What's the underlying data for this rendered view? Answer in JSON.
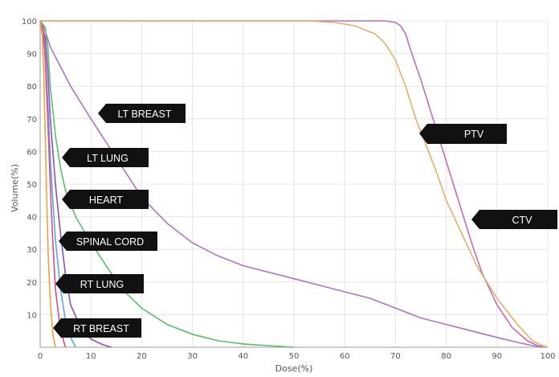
{
  "chart_data": {
    "type": "line",
    "xlabel": "Dose(%)",
    "ylabel": "Volume(%)",
    "xlim": [
      0,
      100
    ],
    "ylim": [
      0,
      100
    ],
    "xticks": [
      0,
      10,
      20,
      30,
      40,
      50,
      60,
      70,
      80,
      90,
      100
    ],
    "yticks": [
      10,
      20,
      30,
      40,
      50,
      60,
      70,
      80,
      90,
      100
    ],
    "grid": true,
    "series": [
      {
        "name": "LT BREAST",
        "color": "#b070c8",
        "x": [
          0,
          1,
          2,
          4,
          6,
          10,
          15,
          20,
          25,
          30,
          35,
          40,
          45,
          50,
          55,
          60,
          65,
          70,
          75,
          80,
          85,
          90,
          94,
          97,
          100
        ],
        "y": [
          100,
          97,
          92,
          86,
          80,
          70,
          58,
          46,
          38,
          32,
          28,
          25,
          23,
          21,
          19,
          17,
          15,
          12,
          9,
          7,
          5,
          3,
          1.5,
          0.5,
          0
        ]
      },
      {
        "name": "PTV",
        "color": "#c76ab8",
        "x": [
          0,
          10,
          20,
          30,
          40,
          50,
          60,
          65,
          68,
          70,
          71,
          72,
          73,
          75,
          77,
          80,
          83,
          85,
          87,
          90,
          93,
          96,
          98,
          100
        ],
        "y": [
          100,
          100,
          100,
          100,
          100,
          100,
          100,
          100,
          100,
          99.5,
          98.5,
          96,
          91,
          82,
          72,
          57,
          42,
          32,
          23,
          13,
          6,
          2,
          0.5,
          0
        ]
      },
      {
        "name": "CTV",
        "color": "#e0b16a",
        "x": [
          0,
          10,
          20,
          30,
          40,
          50,
          53,
          55,
          58,
          62,
          66,
          68,
          70,
          72,
          74,
          76,
          78,
          80,
          83,
          86,
          90,
          94,
          97,
          99,
          100
        ],
        "y": [
          100,
          100,
          100,
          100,
          100,
          100,
          100,
          99.8,
          99.5,
          98.5,
          96,
          93,
          88,
          80,
          70,
          62,
          54,
          45,
          35,
          25,
          15,
          7,
          2,
          0.5,
          0
        ]
      },
      {
        "name": "LT LUNG",
        "color": "#58c06a",
        "x": [
          0,
          1,
          1.5,
          2,
          3,
          4,
          5,
          7,
          10,
          13,
          16,
          20,
          25,
          30,
          35,
          40,
          45,
          50
        ],
        "y": [
          100,
          98,
          92,
          80,
          65,
          55,
          48,
          40,
          32,
          25,
          18,
          12,
          7,
          4,
          2,
          1,
          0.5,
          0
        ]
      },
      {
        "name": "HEART",
        "color": "#8a4fbc",
        "x": [
          0,
          1,
          1.5,
          2,
          3,
          4,
          5,
          6,
          8,
          10,
          12,
          14
        ],
        "y": [
          100,
          95,
          85,
          70,
          50,
          35,
          22,
          13,
          6,
          2.5,
          1,
          0
        ]
      },
      {
        "name": "SPINAL CORD",
        "color": "#5aa7e0",
        "x": [
          0,
          1,
          1.5,
          2,
          2.5,
          3,
          4,
          5,
          6,
          7
        ],
        "y": [
          100,
          90,
          75,
          58,
          45,
          33,
          18,
          8,
          3,
          0
        ]
      },
      {
        "name": "RT LUNG",
        "color": "#d24e8a",
        "x": [
          0,
          0.7,
          1,
          1.5,
          2,
          2.5,
          3,
          4,
          5
        ],
        "y": [
          100,
          96,
          88,
          70,
          50,
          32,
          18,
          5,
          0
        ]
      },
      {
        "name": "RT BREAST",
        "color": "#f2a13c",
        "x": [
          0,
          0.4,
          0.7,
          1,
          1.3,
          1.6,
          2,
          2.5,
          3
        ],
        "y": [
          100,
          96,
          85,
          65,
          45,
          28,
          14,
          4,
          0
        ]
      }
    ]
  },
  "callouts": {
    "lt_breast": "LT BREAST",
    "lt_lung": "LT LUNG",
    "heart": "HEART",
    "spinal_cord": "SPINAL CORD",
    "rt_lung": "RT LUNG",
    "rt_breast": "RT BREAST",
    "ptv": "PTV",
    "ctv": "CTV"
  }
}
